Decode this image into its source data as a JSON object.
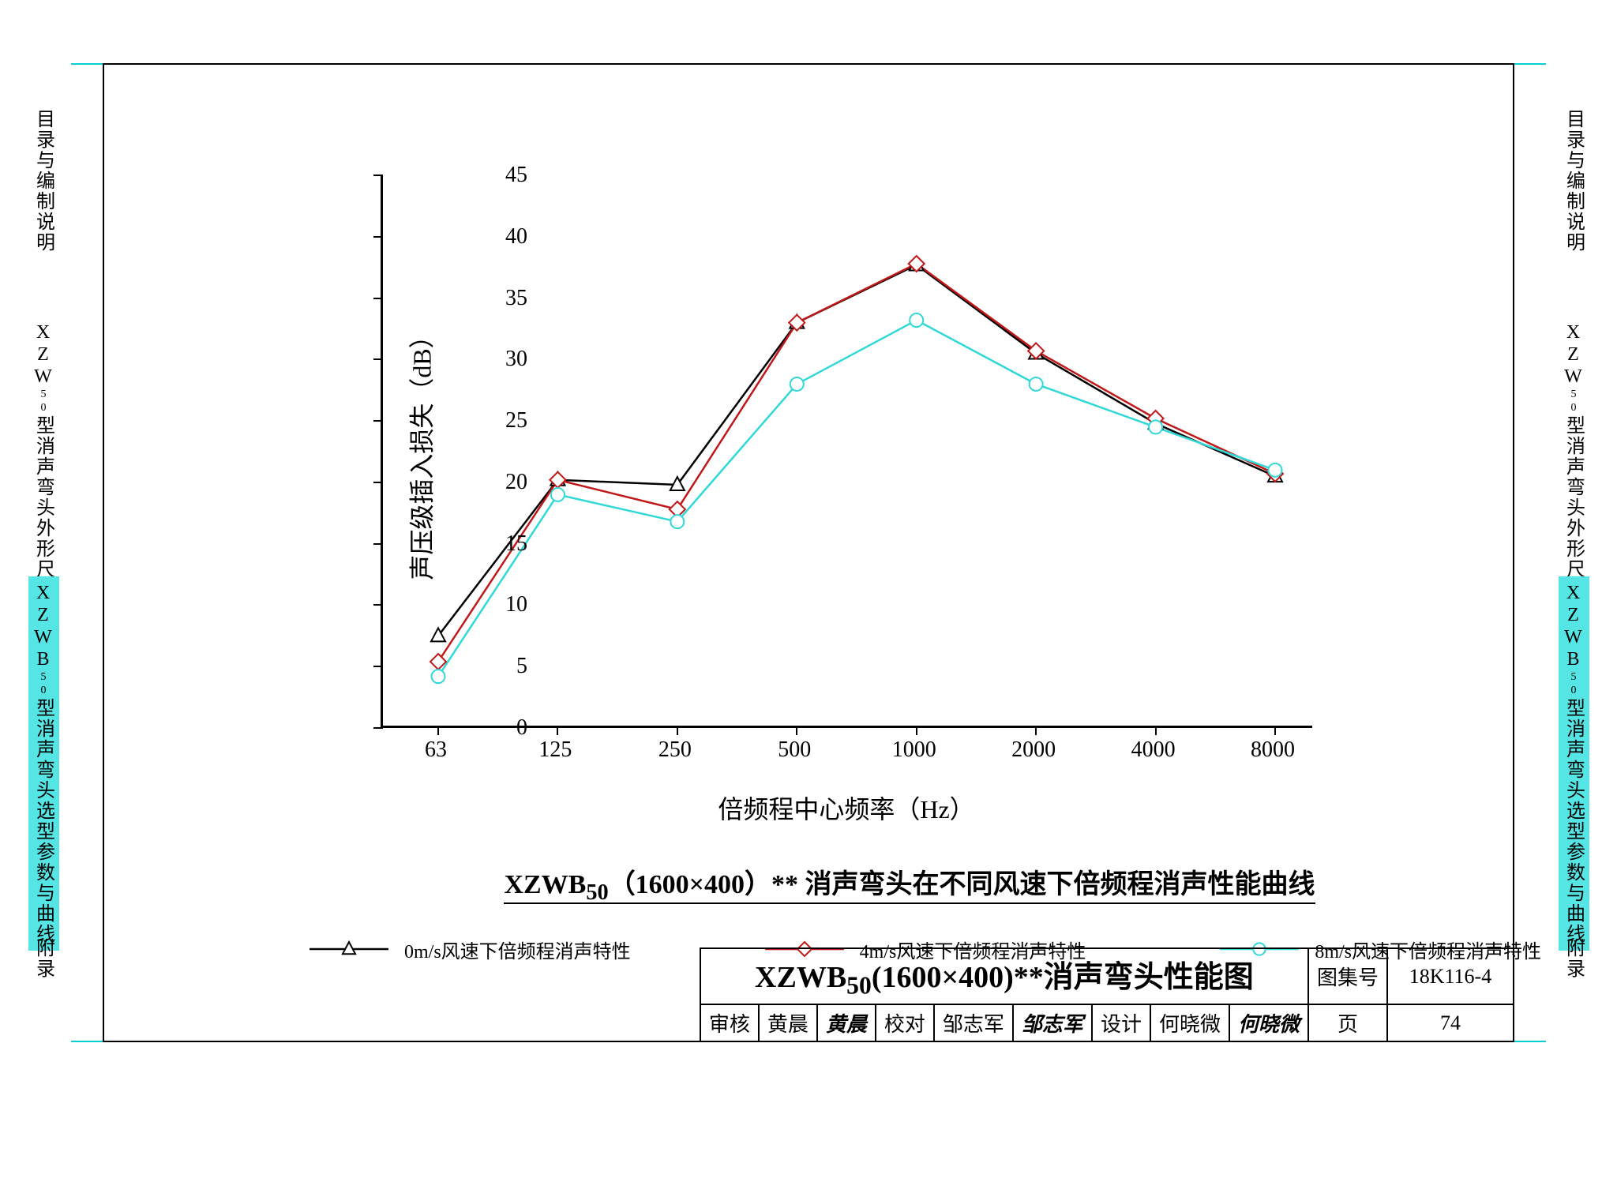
{
  "chart": {
    "type": "line",
    "ylabel": "声压级插入损失（dB）",
    "xlabel": "倍频程中心频率（Hz）",
    "caption_prefix": "XZWB",
    "caption_sub": "50",
    "caption_rest": "（1600×400）** 消声弯头在不同风速下倍频程消声性能曲线",
    "ylim": [
      0,
      45
    ],
    "ytick_step": 5,
    "yticks": [
      0,
      5,
      10,
      15,
      20,
      25,
      30,
      35,
      40,
      45
    ],
    "xticks": [
      "63",
      "125",
      "250",
      "500",
      "1000",
      "2000",
      "4000",
      "8000"
    ],
    "background_color": "#ffffff",
    "axis_color": "#000000",
    "series": [
      {
        "name": "0m/s风速下倍频程消声特性",
        "color": "#000000",
        "marker": "triangle",
        "values": [
          7.5,
          20.2,
          19.8,
          33.0,
          37.7,
          30.5,
          24.8,
          20.5
        ]
      },
      {
        "name": "4m/s风速下倍频程消声特性",
        "color": "#c01818",
        "marker": "diamond",
        "values": [
          5.4,
          20.2,
          17.8,
          33.0,
          37.8,
          30.7,
          25.2,
          20.7
        ]
      },
      {
        "name": "8m/s风速下倍频程消声特性",
        "color": "#30d8d8",
        "marker": "circle",
        "values": [
          4.2,
          19.0,
          16.8,
          28.0,
          33.2,
          28.0,
          24.5,
          21.0
        ]
      }
    ],
    "line_width": 2.5,
    "marker_size": 10,
    "label_fontsize": 32,
    "tick_fontsize": 28
  },
  "titleblock": {
    "main_prefix": "XZWB",
    "main_sub": "50",
    "main_rest": "(1600×400)**消声弯头性能图",
    "set_label": "图集号",
    "set_value": "18K116-4",
    "page_label": "页",
    "page_value": "74",
    "review_label": "审核",
    "review_name": "黄晨",
    "review_sig": "黄晨",
    "check_label": "校对",
    "check_name": "邹志军",
    "check_sig": "邹志军",
    "design_label": "设计",
    "design_name": "何晓微",
    "design_sig": "何晓微"
  },
  "side": {
    "s1": "目录与编制说明",
    "s2_pre": "XZW",
    "s2_sub": "50",
    "s2_rest": "型消声弯头外形尺寸图",
    "s3_pre": "XZWB",
    "s3_sub": "50",
    "s3_rest": "型消声弯头选型参数与曲线",
    "s4": "附录"
  },
  "cyan": "#55e5e5"
}
